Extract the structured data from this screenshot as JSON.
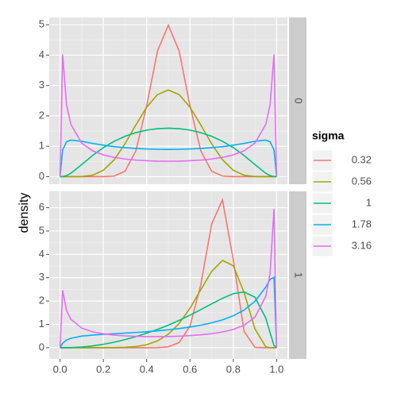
{
  "chart_data": [
    {
      "type": "line",
      "facet_label": "0",
      "ylabel": "density",
      "legend_title": "sigma",
      "x": [
        0,
        0.012,
        0.03,
        0.05,
        0.1,
        0.15,
        0.2,
        0.25,
        0.3,
        0.35,
        0.4,
        0.45,
        0.5,
        0.55,
        0.6,
        0.65,
        0.7,
        0.75,
        0.8,
        0.85,
        0.9,
        0.95,
        0.97,
        0.988,
        1
      ],
      "series": [
        {
          "name": "0.32",
          "color": "#F8766D",
          "values": [
            0,
            0,
            0,
            0,
            0,
            0,
            0,
            0.018,
            0.179,
            0.844,
            2.332,
            4.135,
            4.987,
            4.135,
            2.332,
            0.844,
            0.179,
            0.018,
            0,
            0,
            0,
            0,
            0,
            0,
            0
          ]
        },
        {
          "name": "0.56",
          "color": "#A3A500",
          "values": [
            0,
            0,
            0,
            0,
            0.004,
            0.046,
            0.208,
            0.554,
            1.082,
            1.7,
            2.286,
            2.7,
            2.85,
            2.7,
            2.286,
            1.7,
            1.082,
            0.554,
            0.208,
            0.046,
            0.004,
            0,
            0,
            0,
            0
          ]
        },
        {
          "name": "1",
          "color": "#00BF7D",
          "values": [
            0,
            0.002,
            0.033,
            0.11,
            0.397,
            0.695,
            0.955,
            1.163,
            1.328,
            1.448,
            1.531,
            1.579,
            1.596,
            1.579,
            1.531,
            1.448,
            1.328,
            1.163,
            0.955,
            0.695,
            0.397,
            0.11,
            0.033,
            0.002,
            0
          ]
        },
        {
          "name": "1.78",
          "color": "#00B0F6",
          "values": [
            0,
            0.879,
            1.144,
            1.201,
            1.163,
            1.093,
            1.035,
            0.987,
            0.953,
            0.927,
            0.91,
            0.9,
            0.896,
            0.9,
            0.91,
            0.927,
            0.953,
            0.987,
            1.035,
            1.093,
            1.163,
            1.201,
            1.144,
            0.879,
            0
          ]
        },
        {
          "name": "3.16",
          "color": "#E76BF3",
          "values": [
            0,
            4.02,
            2.368,
            1.721,
            1.101,
            0.851,
            0.716,
            0.633,
            0.58,
            0.544,
            0.522,
            0.509,
            0.505,
            0.509,
            0.522,
            0.544,
            0.58,
            0.633,
            0.716,
            0.851,
            1.101,
            1.721,
            2.368,
            4.02,
            0
          ]
        }
      ],
      "xlim": [
        -0.05,
        1.05
      ],
      "xticks": [
        0,
        0.2,
        0.4,
        0.6,
        0.8,
        1
      ],
      "ylim": [
        -0.25,
        5.24
      ],
      "yticks": [
        0,
        1,
        2,
        3,
        4,
        5
      ],
      "grid": true
    },
    {
      "type": "line",
      "facet_label": "1",
      "x": [
        0,
        0.012,
        0.03,
        0.05,
        0.1,
        0.15,
        0.2,
        0.25,
        0.3,
        0.35,
        0.4,
        0.45,
        0.5,
        0.55,
        0.6,
        0.65,
        0.7,
        0.75,
        0.8,
        0.85,
        0.9,
        0.95,
        0.97,
        0.988,
        1
      ],
      "series": [
        {
          "name": "0.32",
          "color": "#F8766D",
          "values": [
            0,
            0,
            0,
            0,
            0,
            0,
            0,
            0,
            0,
            0,
            0,
            0.004,
            0.038,
            0.224,
            0.923,
            2.7,
            5.296,
            6.336,
            3.766,
            0.7,
            0.013,
            0,
            0,
            0,
            0
          ]
        },
        {
          "name": "0.56",
          "color": "#A3A500",
          "values": [
            0,
            0,
            0,
            0,
            0,
            0,
            0,
            0.003,
            0.015,
            0.048,
            0.128,
            0.289,
            0.578,
            1.041,
            1.689,
            2.486,
            3.267,
            3.74,
            3.511,
            2.362,
            0.806,
            0.036,
            0.001,
            0,
            0
          ]
        },
        {
          "name": "1",
          "color": "#00BF7D",
          "values": [
            0,
            0,
            0.001,
            0.004,
            0.027,
            0.074,
            0.145,
            0.235,
            0.345,
            0.473,
            0.62,
            0.784,
            0.968,
            1.171,
            1.393,
            1.631,
            1.878,
            2.117,
            2.314,
            2.388,
            2.165,
            1.27,
            0.639,
            0.1,
            0
          ]
        },
        {
          "name": "1.78",
          "color": "#00B0F6",
          "values": [
            0,
            0.186,
            0.326,
            0.405,
            0.496,
            0.54,
            0.571,
            0.596,
            0.623,
            0.651,
            0.684,
            0.721,
            0.766,
            0.819,
            0.883,
            0.963,
            1.063,
            1.193,
            1.368,
            1.614,
            1.986,
            2.598,
            2.926,
            3.016,
            0
          ]
        },
        {
          "name": "3.16",
          "color": "#E76BF3",
          "values": [
            0,
            2.457,
            1.59,
            1.219,
            0.84,
            0.681,
            0.593,
            0.54,
            0.507,
            0.487,
            0.476,
            0.474,
            0.48,
            0.494,
            0.517,
            0.551,
            0.6,
            0.673,
            0.783,
            0.963,
            1.305,
            2.199,
            3.19,
            5.946,
            0
          ]
        }
      ],
      "xlim": [
        -0.05,
        1.05
      ],
      "xticks": [
        {
          "value": 0,
          "label": "0.0"
        },
        {
          "value": 0.2,
          "label": "0.2"
        },
        {
          "value": 0.4,
          "label": "0.4"
        },
        {
          "value": 0.6,
          "label": "0.6"
        },
        {
          "value": 0.8,
          "label": "0.8"
        },
        {
          "value": 1,
          "label": "1.0"
        }
      ],
      "ylim": [
        -0.48,
        6.7
      ],
      "yticks": [
        0,
        1,
        2,
        3,
        4,
        5,
        6
      ],
      "grid": true
    }
  ]
}
